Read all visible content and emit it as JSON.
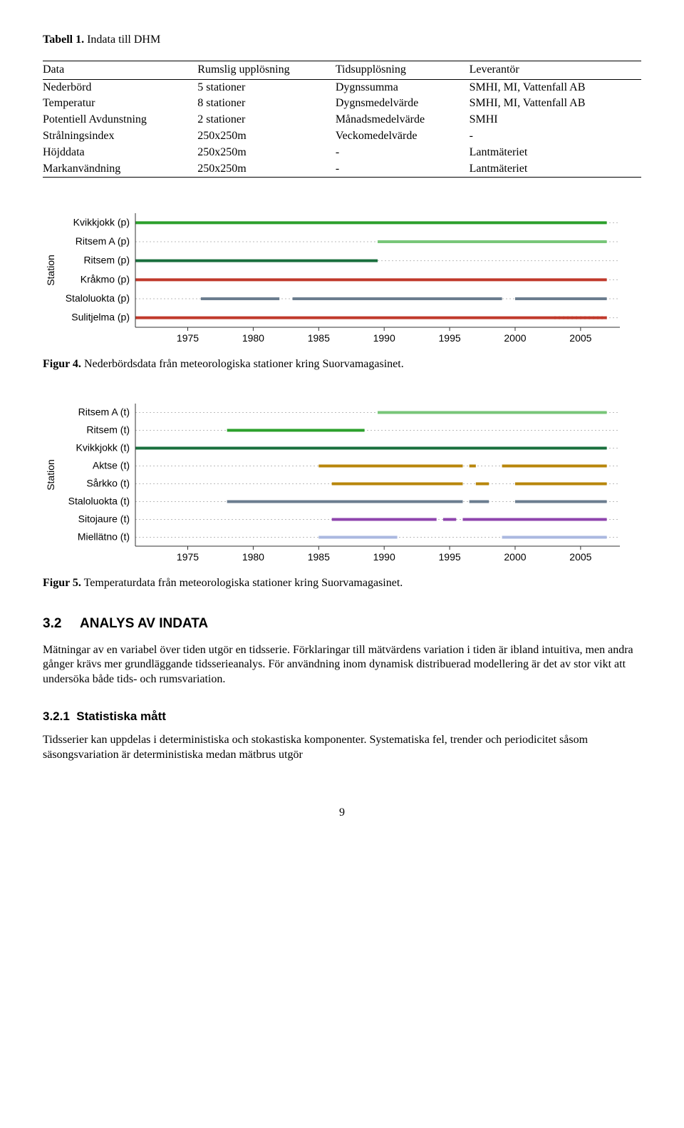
{
  "table": {
    "caption_label": "Tabell 1.",
    "caption_text": " Indata till DHM",
    "headers": [
      "Data",
      "Rumslig upplösning",
      "Tidsupplösning",
      "Leverantör"
    ],
    "rows": [
      [
        "Nederbörd",
        "5 stationer",
        "Dygnssumma",
        "SMHI, MI, Vattenfall AB"
      ],
      [
        "Temperatur",
        "8 stationer",
        "Dygnsmedelvärde",
        "SMHI, MI, Vattenfall AB"
      ],
      [
        "Potentiell Avdunstning",
        "2 stationer",
        "Månadsmedelvärde",
        "SMHI"
      ],
      [
        "Strålningsindex",
        "250x250m",
        "Veckomedelvärde",
        "-"
      ],
      [
        "Höjddata",
        "250x250m",
        "-",
        "Lantmäteriet"
      ],
      [
        "Markanvändning",
        "250x250m",
        "-",
        "Lantmäteriet"
      ]
    ]
  },
  "chart1": {
    "y_axis_label": "Station",
    "stations": [
      "Kvikkjokk (p)",
      "Ritsem A (p)",
      "Ritsem (p)",
      "Kråkmo (p)",
      "Staloluokta (p)",
      "Sulitjelma (p)"
    ],
    "x_ticks": [
      1975,
      1980,
      1985,
      1990,
      1995,
      2000,
      2005
    ],
    "x_min": 1971,
    "x_max": 2008,
    "series": [
      {
        "station": 0,
        "color": "#2ca02c",
        "segments": [
          [
            1971,
            2007
          ]
        ],
        "lw": 4
      },
      {
        "station": 1,
        "color": "#78c679",
        "segments": [
          [
            1989.5,
            2007
          ]
        ],
        "lw": 4
      },
      {
        "station": 2,
        "color": "#196f3d",
        "segments": [
          [
            1971,
            1989.5
          ]
        ],
        "lw": 4
      },
      {
        "station": 3,
        "color": "#c0392b",
        "segments": [
          [
            1971,
            2007
          ]
        ],
        "lw": 4
      },
      {
        "station": 4,
        "color": "#6b7d8f",
        "segments": [
          [
            1976,
            1982
          ],
          [
            1983,
            1999
          ],
          [
            2000,
            2007
          ]
        ],
        "lw": 4
      },
      {
        "station": 5,
        "color": "#c0392b",
        "segments": [
          [
            1971,
            2007
          ]
        ],
        "lw": 4,
        "dotted_after": 2003
      }
    ],
    "grid_color": "#bbbbbb",
    "axis_color": "#333333",
    "tick_font": 14,
    "label_font": 14
  },
  "fig4": {
    "label": "Figur 4.",
    "text": " Nederbördsdata från meteorologiska stationer kring Suorvamagasinet."
  },
  "chart2": {
    "y_axis_label": "Station",
    "stations": [
      "Ritsem A (t)",
      "Ritsem (t)",
      "Kvikkjokk (t)",
      "Aktse (t)",
      "Sårkko (t)",
      "Staloluokta (t)",
      "Sitojaure (t)",
      "Miellätno (t)"
    ],
    "x_ticks": [
      1975,
      1980,
      1985,
      1990,
      1995,
      2000,
      2005
    ],
    "x_min": 1971,
    "x_max": 2008,
    "series": [
      {
        "station": 0,
        "color": "#78c679",
        "segments": [
          [
            1989.5,
            2007
          ]
        ],
        "lw": 4
      },
      {
        "station": 1,
        "color": "#2ca02c",
        "segments": [
          [
            1978,
            1988.5
          ]
        ],
        "lw": 4
      },
      {
        "station": 2,
        "color": "#196f3d",
        "segments": [
          [
            1971,
            2007
          ]
        ],
        "lw": 4
      },
      {
        "station": 3,
        "color": "#b8860b",
        "segments": [
          [
            1985,
            1996
          ],
          [
            1996.5,
            1997
          ],
          [
            1999,
            2007
          ]
        ],
        "lw": 4
      },
      {
        "station": 4,
        "color": "#b8860b",
        "segments": [
          [
            1986,
            1996
          ],
          [
            1997,
            1998
          ],
          [
            2000,
            2007
          ]
        ],
        "lw": 4
      },
      {
        "station": 5,
        "color": "#6b7d8f",
        "segments": [
          [
            1978,
            1996
          ],
          [
            1996.5,
            1998
          ],
          [
            2000,
            2007
          ]
        ],
        "lw": 4
      },
      {
        "station": 6,
        "color": "#8e44ad",
        "segments": [
          [
            1986,
            1994
          ],
          [
            1994.5,
            1995.5
          ],
          [
            1996,
            2007
          ]
        ],
        "lw": 4
      },
      {
        "station": 7,
        "color": "#aab8e0",
        "segments": [
          [
            1985,
            1991
          ],
          [
            1999,
            2007
          ]
        ],
        "lw": 4
      }
    ],
    "grid_color": "#bbbbbb",
    "axis_color": "#333333",
    "tick_font": 14,
    "label_font": 14
  },
  "fig5": {
    "label": "Figur 5.",
    "text": " Temperaturdata från meteorologiska stationer kring Suorvamagasinet."
  },
  "section32": {
    "num": "3.2",
    "title": "ANALYS AV INDATA"
  },
  "para32": "Mätningar av en variabel över tiden utgör en tidsserie. Förklaringar till mätvärdens variation i tiden är ibland intuitiva, men andra gånger krävs mer grundläggande tidsserieanalys. För användning inom dynamisk distribuerad modellering är det av stor vikt att undersöka både tids- och rumsvariation.",
  "section321": {
    "num": "3.2.1",
    "title": "Statistiska mått"
  },
  "para321": "Tidsserier kan uppdelas i deterministiska och stokastiska komponenter. Systematiska fel, trender och periodicitet såsom säsongsvariation är deterministiska medan mätbrus utgör",
  "page_number": "9"
}
